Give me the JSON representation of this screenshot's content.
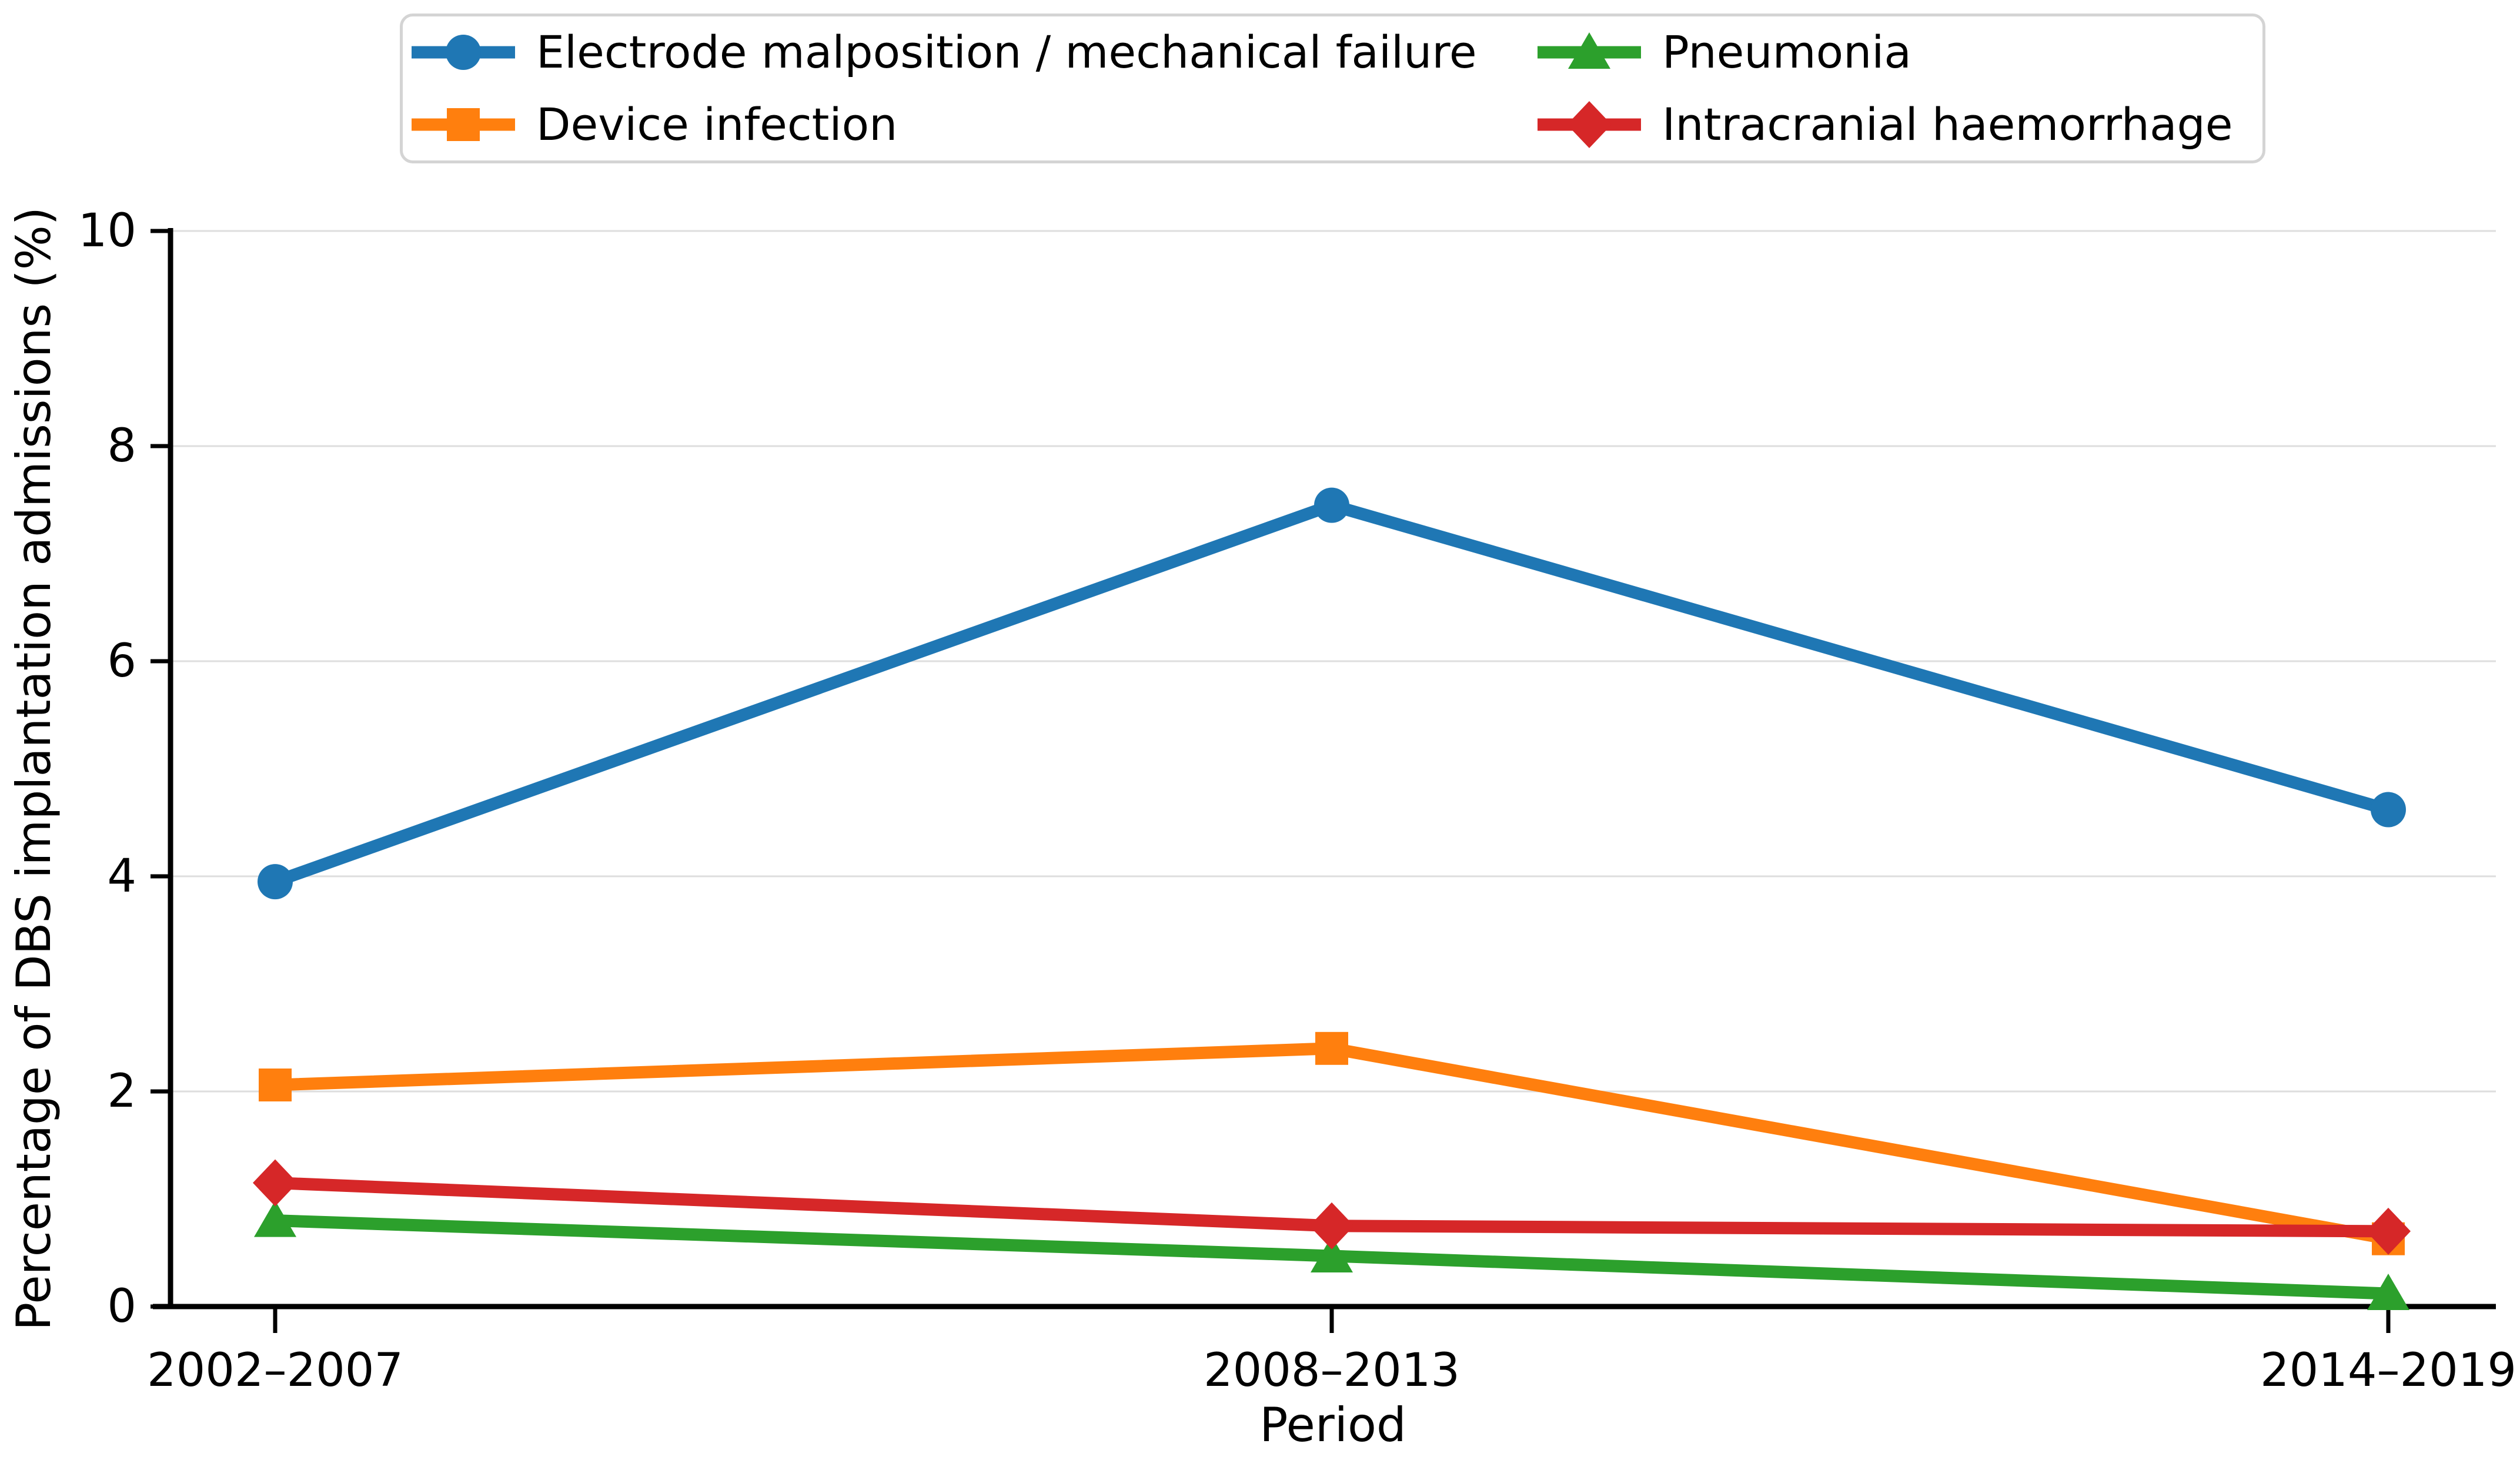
{
  "chart_data": {
    "type": "line",
    "title": "",
    "categories": [
      "2002–2007",
      "2008–2013",
      "2014–2019"
    ],
    "series": [
      {
        "name": "Electrode malposition / mechanical failure",
        "color": "#1f77b4",
        "marker": "circle",
        "values": [
          3.95,
          7.45,
          4.62
        ]
      },
      {
        "name": "Device infection",
        "color": "#ff7f0e",
        "marker": "square",
        "values": [
          2.06,
          2.4,
          0.63
        ]
      },
      {
        "name": "Pneumonia",
        "color": "#2ca02c",
        "marker": "triangle",
        "values": [
          0.8,
          0.47,
          0.12
        ]
      },
      {
        "name": "Intracranial haemorrhage",
        "color": "#d62728",
        "marker": "diamond",
        "values": [
          1.15,
          0.75,
          0.7
        ]
      }
    ],
    "xlabel": "Period",
    "ylabel": "Percentage of DBS implantation admissions (%)",
    "ylim": [
      0,
      10
    ],
    "yticks": [
      0,
      2,
      4,
      6,
      8,
      10
    ],
    "grid": true,
    "gridline_color": "#dedede",
    "axis_color": "#000000",
    "legend": {
      "position": "top",
      "columns": 2,
      "display_order": [
        0,
        2,
        1,
        3
      ]
    }
  }
}
